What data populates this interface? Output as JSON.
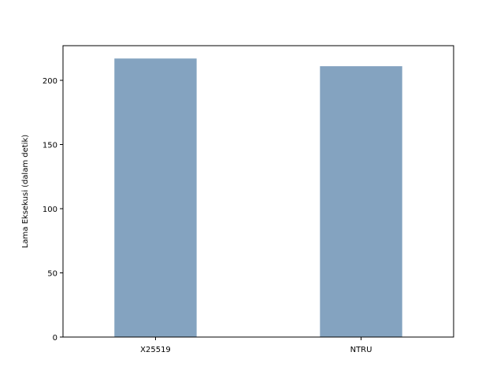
{
  "chart_data": {
    "type": "bar",
    "categories": [
      "X25519",
      "NTRU"
    ],
    "values": [
      217,
      211
    ],
    "xlabel": "",
    "ylabel": "Lama Eksekusi (dalam detik)",
    "ylim": [
      0,
      227
    ],
    "yticks": [
      0,
      50,
      100,
      150,
      200
    ],
    "bar_color": "#84a3c0",
    "grid": false,
    "legend": "none"
  }
}
